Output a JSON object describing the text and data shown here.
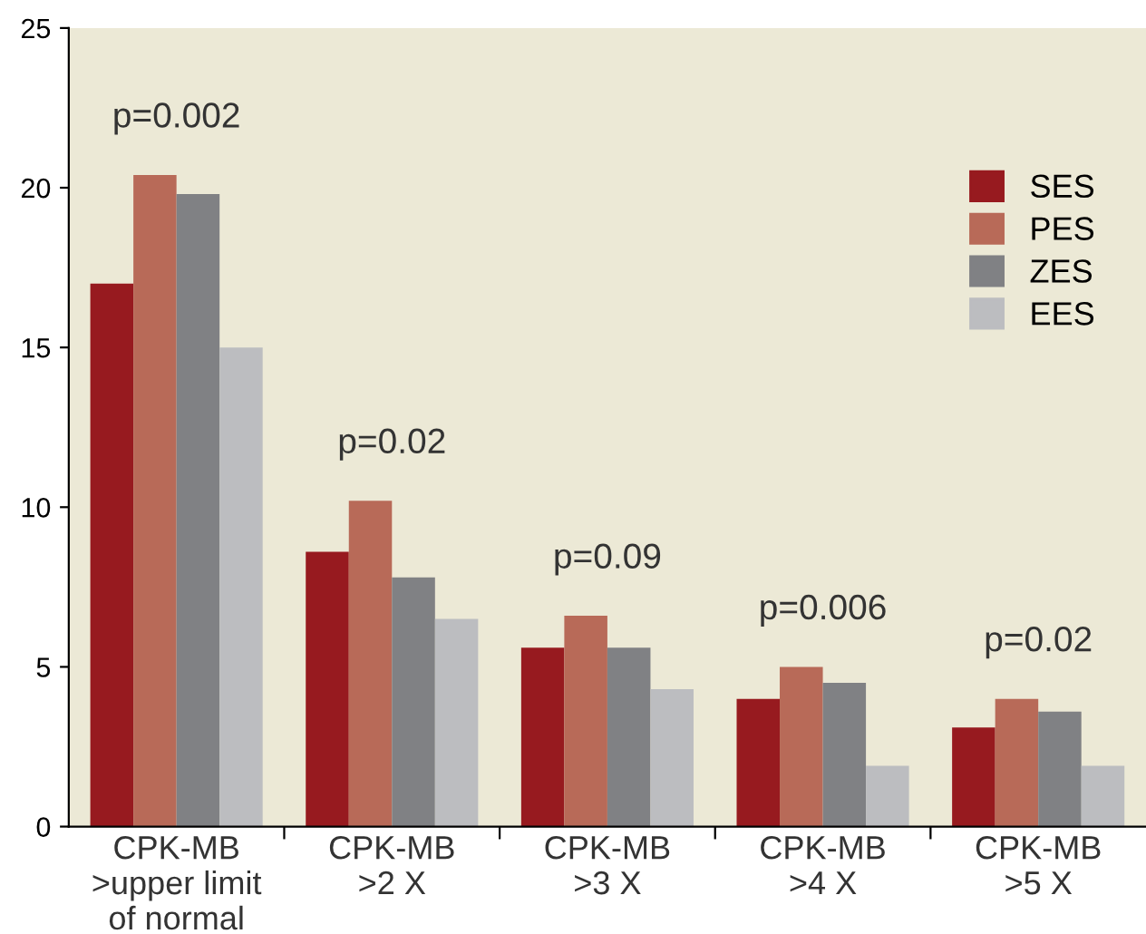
{
  "chart_data": {
    "type": "bar",
    "categories": [
      "CPK-MB\n>upper limit\nof normal",
      "CPK-MB\n>2 X",
      "CPK-MB\n>3 X",
      "CPK-MB\n>4 X",
      "CPK-MB\n>5 X"
    ],
    "series": [
      {
        "name": "SES",
        "color": "#971a1f",
        "values": [
          17.0,
          8.6,
          5.6,
          4.0,
          3.1
        ]
      },
      {
        "name": "PES",
        "color": "#b86a58",
        "values": [
          20.4,
          10.2,
          6.6,
          5.0,
          4.0
        ]
      },
      {
        "name": "ZES",
        "color": "#808184",
        "values": [
          19.8,
          7.8,
          5.6,
          4.5,
          3.6
        ]
      },
      {
        "name": "EES",
        "color": "#bcbdc0",
        "values": [
          15.0,
          6.5,
          4.3,
          1.9,
          1.9
        ]
      }
    ],
    "ylim": [
      0,
      25
    ],
    "yticks": [
      0,
      5,
      10,
      15,
      20,
      25
    ],
    "grid": false,
    "legend": "right",
    "annotations": [
      "p=0.002",
      "p=0.02",
      "p=0.09",
      "p=0.006",
      "p=0.02"
    ]
  }
}
